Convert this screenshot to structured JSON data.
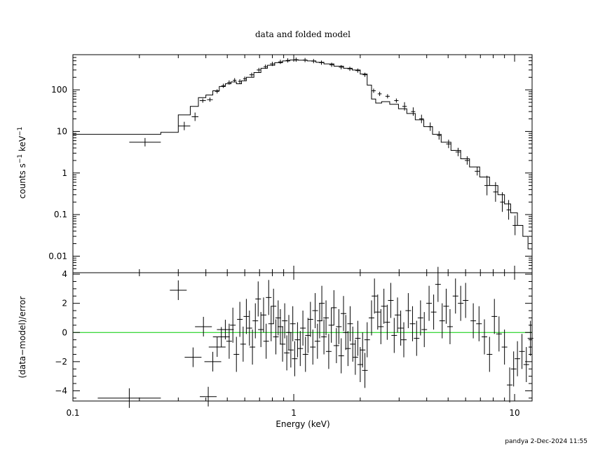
{
  "footer": "pandya  2-Dec-2024 11:55",
  "chart_data": [
    {
      "type": "line",
      "title": "data and folded model",
      "xlabel": "",
      "ylabel_base": "counts s",
      "ylabel_mid": " keV",
      "ylabel_exp": "−1",
      "xscale": "log",
      "yscale": "log",
      "xlim": [
        0.1,
        12.0
      ],
      "ylim": [
        0.004,
        700
      ],
      "y_ticks": [
        0.01,
        0.1,
        1,
        10,
        100
      ],
      "y_tick_labels": [
        "0.01",
        "0.1",
        "1",
        "10",
        "100"
      ],
      "grid": false,
      "series": [
        {
          "role": "data",
          "points": [
            [
              0.18,
              0.25,
              5.5
            ],
            [
              0.3,
              0.34,
              13.5
            ],
            [
              0.345,
              0.37,
              22.5
            ],
            [
              0.375,
              0.4,
              55
            ],
            [
              0.405,
              0.43,
              58
            ],
            [
              0.44,
              0.46,
              92
            ],
            [
              0.47,
              0.49,
              125
            ],
            [
              0.5,
              0.52,
              150
            ],
            [
              0.53,
              0.55,
              170
            ],
            [
              0.56,
              0.58,
              160
            ],
            [
              0.59,
              0.61,
              185
            ],
            [
              0.63,
              0.66,
              230
            ],
            [
              0.68,
              0.71,
              300
            ],
            [
              0.73,
              0.76,
              360
            ],
            [
              0.78,
              0.82,
              420
            ],
            [
              0.85,
              0.89,
              470
            ],
            [
              0.92,
              0.96,
              510
            ],
            [
              1.0,
              1.05,
              530
            ],
            [
              1.1,
              1.15,
              520
            ],
            [
              1.2,
              1.26,
              490
            ],
            [
              1.3,
              1.37,
              450
            ],
            [
              1.45,
              1.52,
              400
            ],
            [
              1.6,
              1.68,
              350
            ],
            [
              1.75,
              1.84,
              320
            ],
            [
              1.9,
              2.0,
              290
            ],
            [
              2.05,
              2.15,
              230
            ],
            [
              2.25,
              2.35,
              95
            ],
            [
              2.4,
              2.5,
              80
            ],
            [
              2.6,
              2.72,
              70
            ],
            [
              2.85,
              2.98,
              55
            ],
            [
              3.1,
              3.25,
              40
            ],
            [
              3.4,
              3.55,
              30
            ],
            [
              3.7,
              3.88,
              20
            ],
            [
              4.05,
              4.25,
              13
            ],
            [
              4.45,
              4.65,
              8
            ],
            [
              4.9,
              5.15,
              5
            ],
            [
              5.4,
              5.7,
              3.2
            ],
            [
              5.95,
              6.25,
              2.0
            ],
            [
              6.6,
              6.95,
              1.1
            ],
            [
              7.3,
              7.7,
              0.5
            ],
            [
              8.0,
              8.4,
              0.35
            ],
            [
              8.6,
              9.0,
              0.2
            ],
            [
              9.2,
              9.6,
              0.13
            ],
            [
              9.8,
              10.3,
              0.055
            ]
          ]
        },
        {
          "role": "model",
          "steps": [
            [
              0.1,
              8.5
            ],
            [
              0.25,
              9.5
            ],
            [
              0.3,
              25
            ],
            [
              0.34,
              40
            ],
            [
              0.37,
              65
            ],
            [
              0.4,
              75
            ],
            [
              0.43,
              95
            ],
            [
              0.46,
              120
            ],
            [
              0.49,
              140
            ],
            [
              0.52,
              155
            ],
            [
              0.55,
              140
            ],
            [
              0.58,
              165
            ],
            [
              0.61,
              200
            ],
            [
              0.66,
              260
            ],
            [
              0.71,
              330
            ],
            [
              0.76,
              390
            ],
            [
              0.82,
              450
            ],
            [
              0.89,
              495
            ],
            [
              0.96,
              520
            ],
            [
              1.05,
              515
            ],
            [
              1.15,
              495
            ],
            [
              1.26,
              460
            ],
            [
              1.37,
              420
            ],
            [
              1.52,
              370
            ],
            [
              1.68,
              330
            ],
            [
              1.84,
              300
            ],
            [
              2.0,
              240
            ],
            [
              2.15,
              130
            ],
            [
              2.25,
              60
            ],
            [
              2.35,
              48
            ],
            [
              2.5,
              52
            ],
            [
              2.72,
              45
            ],
            [
              2.98,
              35
            ],
            [
              3.25,
              27
            ],
            [
              3.55,
              19
            ],
            [
              3.88,
              13
            ],
            [
              4.25,
              8.5
            ],
            [
              4.65,
              5.5
            ],
            [
              5.15,
              3.5
            ],
            [
              5.7,
              2.2
            ],
            [
              6.25,
              1.4
            ],
            [
              6.95,
              0.8
            ],
            [
              7.7,
              0.5
            ],
            [
              8.4,
              0.3
            ],
            [
              9.0,
              0.18
            ],
            [
              9.6,
              0.11
            ],
            [
              10.3,
              0.055
            ],
            [
              10.9,
              0.03
            ],
            [
              11.5,
              0.015
            ],
            [
              12.0,
              0.012
            ]
          ]
        }
      ]
    },
    {
      "type": "scatter",
      "xlabel": "Energy (keV)",
      "ylabel": "(data−model)/error",
      "xscale": "log",
      "xlim": [
        0.1,
        12.0
      ],
      "ylim": [
        -4.7,
        4.1
      ],
      "x_ticks": [
        0.1,
        1,
        10
      ],
      "x_tick_labels": [
        "0.1",
        "1",
        "10"
      ],
      "y_ticks": [
        -4,
        -2,
        0,
        2,
        4
      ],
      "y_tick_labels": [
        "−4",
        "−2",
        "0",
        "2",
        "4"
      ],
      "zero_line_color": "#00cc00",
      "grid": false,
      "series": [
        {
          "role": "residuals",
          "points": [
            [
              0.18,
              -4.5
            ],
            [
              0.3,
              2.9
            ],
            [
              0.35,
              -1.7
            ],
            [
              0.39,
              0.4
            ],
            [
              0.41,
              -4.4
            ],
            [
              0.43,
              -2.0
            ],
            [
              0.45,
              -1.0
            ],
            [
              0.47,
              -0.3
            ],
            [
              0.49,
              0.2
            ],
            [
              0.51,
              -0.6
            ],
            [
              0.53,
              0.5
            ],
            [
              0.55,
              -1.5
            ],
            [
              0.57,
              0.9
            ],
            [
              0.59,
              -0.8
            ],
            [
              0.61,
              1.1
            ],
            [
              0.63,
              0.3
            ],
            [
              0.65,
              -1.0
            ],
            [
              0.67,
              0.8
            ],
            [
              0.69,
              2.3
            ],
            [
              0.71,
              0.2
            ],
            [
              0.73,
              1.2
            ],
            [
              0.75,
              -0.6
            ],
            [
              0.77,
              2.4
            ],
            [
              0.79,
              0.6
            ],
            [
              0.81,
              1.8
            ],
            [
              0.83,
              -0.3
            ],
            [
              0.85,
              1.0
            ],
            [
              0.87,
              0.4
            ],
            [
              0.89,
              -0.8
            ],
            [
              0.91,
              0.8
            ],
            [
              0.93,
              -1.4
            ],
            [
              0.95,
              0.0
            ],
            [
              0.97,
              -1.2
            ],
            [
              0.99,
              0.6
            ],
            [
              1.01,
              -1.8
            ],
            [
              1.04,
              -0.5
            ],
            [
              1.07,
              -1.1
            ],
            [
              1.1,
              0.3
            ],
            [
              1.13,
              -1.5
            ],
            [
              1.16,
              -0.2
            ],
            [
              1.19,
              0.9
            ],
            [
              1.22,
              -1.0
            ],
            [
              1.25,
              1.5
            ],
            [
              1.28,
              -0.6
            ],
            [
              1.31,
              0.8
            ],
            [
              1.34,
              2.0
            ],
            [
              1.37,
              -0.3
            ],
            [
              1.4,
              1.0
            ],
            [
              1.44,
              -1.3
            ],
            [
              1.48,
              0.5
            ],
            [
              1.52,
              1.7
            ],
            [
              1.56,
              -0.9
            ],
            [
              1.6,
              0.4
            ],
            [
              1.64,
              -1.6
            ],
            [
              1.68,
              1.3
            ],
            [
              1.72,
              0.0
            ],
            [
              1.76,
              -1.1
            ],
            [
              1.8,
              0.6
            ],
            [
              1.85,
              -0.8
            ],
            [
              1.9,
              -1.7
            ],
            [
              1.95,
              -0.4
            ],
            [
              2.0,
              -2.2
            ],
            [
              2.05,
              -1.2
            ],
            [
              2.1,
              -2.6
            ],
            [
              2.15,
              -0.5
            ],
            [
              2.25,
              1.0
            ],
            [
              2.32,
              2.5
            ],
            [
              2.4,
              1.4
            ],
            [
              2.48,
              0.4
            ],
            [
              2.56,
              1.8
            ],
            [
              2.65,
              0.7
            ],
            [
              2.75,
              2.2
            ],
            [
              2.85,
              -0.2
            ],
            [
              2.95,
              1.2
            ],
            [
              3.05,
              0.3
            ],
            [
              3.15,
              -0.5
            ],
            [
              3.3,
              1.5
            ],
            [
              3.45,
              0.6
            ],
            [
              3.6,
              -0.4
            ],
            [
              3.75,
              1.0
            ],
            [
              3.9,
              0.2
            ],
            [
              4.1,
              2.0
            ],
            [
              4.3,
              1.4
            ],
            [
              4.5,
              3.3
            ],
            [
              4.7,
              0.8
            ],
            [
              4.9,
              1.8
            ],
            [
              5.1,
              0.4
            ],
            [
              5.4,
              2.5
            ],
            [
              5.7,
              2.0
            ],
            [
              6.0,
              2.2
            ],
            [
              6.5,
              0.8
            ],
            [
              6.9,
              0.6
            ],
            [
              7.3,
              -0.3
            ],
            [
              7.7,
              -1.5
            ],
            [
              8.1,
              1.1
            ],
            [
              8.5,
              -0.1
            ],
            [
              9.0,
              -1.0
            ],
            [
              9.5,
              -3.6
            ],
            [
              9.9,
              -2.5
            ],
            [
              10.3,
              -1.8
            ],
            [
              10.8,
              -1.3
            ],
            [
              11.3,
              -2.2
            ],
            [
              11.8,
              -0.4
            ]
          ]
        }
      ]
    }
  ]
}
